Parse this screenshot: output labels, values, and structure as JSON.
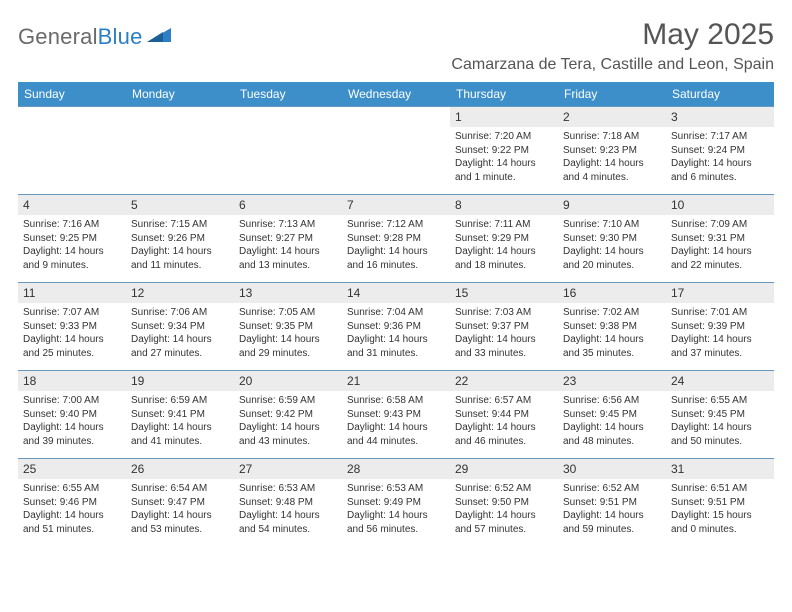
{
  "logo": {
    "word1": "General",
    "word2": "Blue"
  },
  "title": "May 2025",
  "location": "Camarzana de Tera, Castille and Leon, Spain",
  "colors": {
    "header_bg": "#3d8fc9",
    "header_text": "#ffffff",
    "daynum_bg": "#ececec",
    "border": "#6a98bc",
    "text": "#333333",
    "logo_gray": "#6a6a6a",
    "logo_blue": "#2d7fc4"
  },
  "day_names": [
    "Sunday",
    "Monday",
    "Tuesday",
    "Wednesday",
    "Thursday",
    "Friday",
    "Saturday"
  ],
  "weeks": [
    [
      null,
      null,
      null,
      null,
      {
        "n": "1",
        "sr": "Sunrise: 7:20 AM",
        "ss": "Sunset: 9:22 PM",
        "dl1": "Daylight: 14 hours",
        "dl2": "and 1 minute."
      },
      {
        "n": "2",
        "sr": "Sunrise: 7:18 AM",
        "ss": "Sunset: 9:23 PM",
        "dl1": "Daylight: 14 hours",
        "dl2": "and 4 minutes."
      },
      {
        "n": "3",
        "sr": "Sunrise: 7:17 AM",
        "ss": "Sunset: 9:24 PM",
        "dl1": "Daylight: 14 hours",
        "dl2": "and 6 minutes."
      }
    ],
    [
      {
        "n": "4",
        "sr": "Sunrise: 7:16 AM",
        "ss": "Sunset: 9:25 PM",
        "dl1": "Daylight: 14 hours",
        "dl2": "and 9 minutes."
      },
      {
        "n": "5",
        "sr": "Sunrise: 7:15 AM",
        "ss": "Sunset: 9:26 PM",
        "dl1": "Daylight: 14 hours",
        "dl2": "and 11 minutes."
      },
      {
        "n": "6",
        "sr": "Sunrise: 7:13 AM",
        "ss": "Sunset: 9:27 PM",
        "dl1": "Daylight: 14 hours",
        "dl2": "and 13 minutes."
      },
      {
        "n": "7",
        "sr": "Sunrise: 7:12 AM",
        "ss": "Sunset: 9:28 PM",
        "dl1": "Daylight: 14 hours",
        "dl2": "and 16 minutes."
      },
      {
        "n": "8",
        "sr": "Sunrise: 7:11 AM",
        "ss": "Sunset: 9:29 PM",
        "dl1": "Daylight: 14 hours",
        "dl2": "and 18 minutes."
      },
      {
        "n": "9",
        "sr": "Sunrise: 7:10 AM",
        "ss": "Sunset: 9:30 PM",
        "dl1": "Daylight: 14 hours",
        "dl2": "and 20 minutes."
      },
      {
        "n": "10",
        "sr": "Sunrise: 7:09 AM",
        "ss": "Sunset: 9:31 PM",
        "dl1": "Daylight: 14 hours",
        "dl2": "and 22 minutes."
      }
    ],
    [
      {
        "n": "11",
        "sr": "Sunrise: 7:07 AM",
        "ss": "Sunset: 9:33 PM",
        "dl1": "Daylight: 14 hours",
        "dl2": "and 25 minutes."
      },
      {
        "n": "12",
        "sr": "Sunrise: 7:06 AM",
        "ss": "Sunset: 9:34 PM",
        "dl1": "Daylight: 14 hours",
        "dl2": "and 27 minutes."
      },
      {
        "n": "13",
        "sr": "Sunrise: 7:05 AM",
        "ss": "Sunset: 9:35 PM",
        "dl1": "Daylight: 14 hours",
        "dl2": "and 29 minutes."
      },
      {
        "n": "14",
        "sr": "Sunrise: 7:04 AM",
        "ss": "Sunset: 9:36 PM",
        "dl1": "Daylight: 14 hours",
        "dl2": "and 31 minutes."
      },
      {
        "n": "15",
        "sr": "Sunrise: 7:03 AM",
        "ss": "Sunset: 9:37 PM",
        "dl1": "Daylight: 14 hours",
        "dl2": "and 33 minutes."
      },
      {
        "n": "16",
        "sr": "Sunrise: 7:02 AM",
        "ss": "Sunset: 9:38 PM",
        "dl1": "Daylight: 14 hours",
        "dl2": "and 35 minutes."
      },
      {
        "n": "17",
        "sr": "Sunrise: 7:01 AM",
        "ss": "Sunset: 9:39 PM",
        "dl1": "Daylight: 14 hours",
        "dl2": "and 37 minutes."
      }
    ],
    [
      {
        "n": "18",
        "sr": "Sunrise: 7:00 AM",
        "ss": "Sunset: 9:40 PM",
        "dl1": "Daylight: 14 hours",
        "dl2": "and 39 minutes."
      },
      {
        "n": "19",
        "sr": "Sunrise: 6:59 AM",
        "ss": "Sunset: 9:41 PM",
        "dl1": "Daylight: 14 hours",
        "dl2": "and 41 minutes."
      },
      {
        "n": "20",
        "sr": "Sunrise: 6:59 AM",
        "ss": "Sunset: 9:42 PM",
        "dl1": "Daylight: 14 hours",
        "dl2": "and 43 minutes."
      },
      {
        "n": "21",
        "sr": "Sunrise: 6:58 AM",
        "ss": "Sunset: 9:43 PM",
        "dl1": "Daylight: 14 hours",
        "dl2": "and 44 minutes."
      },
      {
        "n": "22",
        "sr": "Sunrise: 6:57 AM",
        "ss": "Sunset: 9:44 PM",
        "dl1": "Daylight: 14 hours",
        "dl2": "and 46 minutes."
      },
      {
        "n": "23",
        "sr": "Sunrise: 6:56 AM",
        "ss": "Sunset: 9:45 PM",
        "dl1": "Daylight: 14 hours",
        "dl2": "and 48 minutes."
      },
      {
        "n": "24",
        "sr": "Sunrise: 6:55 AM",
        "ss": "Sunset: 9:45 PM",
        "dl1": "Daylight: 14 hours",
        "dl2": "and 50 minutes."
      }
    ],
    [
      {
        "n": "25",
        "sr": "Sunrise: 6:55 AM",
        "ss": "Sunset: 9:46 PM",
        "dl1": "Daylight: 14 hours",
        "dl2": "and 51 minutes."
      },
      {
        "n": "26",
        "sr": "Sunrise: 6:54 AM",
        "ss": "Sunset: 9:47 PM",
        "dl1": "Daylight: 14 hours",
        "dl2": "and 53 minutes."
      },
      {
        "n": "27",
        "sr": "Sunrise: 6:53 AM",
        "ss": "Sunset: 9:48 PM",
        "dl1": "Daylight: 14 hours",
        "dl2": "and 54 minutes."
      },
      {
        "n": "28",
        "sr": "Sunrise: 6:53 AM",
        "ss": "Sunset: 9:49 PM",
        "dl1": "Daylight: 14 hours",
        "dl2": "and 56 minutes."
      },
      {
        "n": "29",
        "sr": "Sunrise: 6:52 AM",
        "ss": "Sunset: 9:50 PM",
        "dl1": "Daylight: 14 hours",
        "dl2": "and 57 minutes."
      },
      {
        "n": "30",
        "sr": "Sunrise: 6:52 AM",
        "ss": "Sunset: 9:51 PM",
        "dl1": "Daylight: 14 hours",
        "dl2": "and 59 minutes."
      },
      {
        "n": "31",
        "sr": "Sunrise: 6:51 AM",
        "ss": "Sunset: 9:51 PM",
        "dl1": "Daylight: 15 hours",
        "dl2": "and 0 minutes."
      }
    ]
  ]
}
